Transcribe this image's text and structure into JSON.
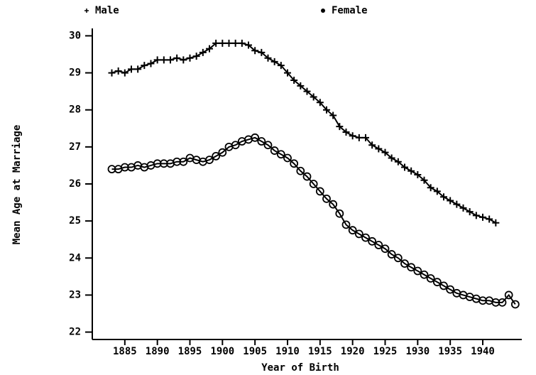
{
  "chart_data": {
    "type": "line",
    "x_label": "Year of Birth",
    "y_label": "Mean Age at Marriage",
    "x": [
      1883,
      1884,
      1885,
      1886,
      1887,
      1888,
      1889,
      1890,
      1891,
      1892,
      1893,
      1894,
      1895,
      1896,
      1897,
      1898,
      1899,
      1900,
      1901,
      1902,
      1903,
      1904,
      1905,
      1906,
      1907,
      1908,
      1909,
      1910,
      1911,
      1912,
      1913,
      1914,
      1915,
      1916,
      1917,
      1918,
      1919,
      1920,
      1921,
      1922,
      1923,
      1924,
      1925,
      1926,
      1927,
      1928,
      1929,
      1930,
      1931,
      1932,
      1933,
      1934,
      1935,
      1936,
      1937,
      1938,
      1939,
      1940,
      1941,
      1942,
      1943,
      1944,
      1945
    ],
    "series": [
      {
        "name": "Male",
        "color": "#000000",
        "marker": "plus",
        "values": [
          29.0,
          29.05,
          29.0,
          29.1,
          29.1,
          29.2,
          29.25,
          29.35,
          29.35,
          29.35,
          29.4,
          29.35,
          29.4,
          29.45,
          29.55,
          29.65,
          29.8,
          29.8,
          29.8,
          29.8,
          29.8,
          29.75,
          29.6,
          29.55,
          29.4,
          29.3,
          29.2,
          29.0,
          28.8,
          28.65,
          28.5,
          28.35,
          28.2,
          28.0,
          27.85,
          27.55,
          27.4,
          27.3,
          27.25,
          27.25,
          27.05,
          26.95,
          26.85,
          26.7,
          26.6,
          26.45,
          26.35,
          26.25,
          26.1,
          25.9,
          25.8,
          25.65,
          25.55,
          25.45,
          25.35,
          25.25,
          25.15,
          25.1,
          25.05,
          24.95,
          null,
          null,
          null
        ]
      },
      {
        "name": "Female",
        "color": "#000000",
        "marker": "circle",
        "values": [
          26.4,
          26.4,
          26.45,
          26.45,
          26.5,
          26.45,
          26.5,
          26.55,
          26.55,
          26.55,
          26.6,
          26.6,
          26.7,
          26.65,
          26.6,
          26.65,
          26.75,
          26.85,
          27.0,
          27.05,
          27.15,
          27.2,
          27.25,
          27.15,
          27.05,
          26.9,
          26.8,
          26.7,
          26.55,
          26.35,
          26.2,
          26.0,
          25.8,
          25.6,
          25.45,
          25.2,
          24.9,
          24.75,
          24.65,
          24.55,
          24.45,
          24.35,
          24.25,
          24.1,
          24.0,
          23.85,
          23.75,
          23.65,
          23.55,
          23.45,
          23.35,
          23.25,
          23.15,
          23.05,
          23.0,
          22.95,
          22.9,
          22.85,
          22.85,
          22.8,
          22.8,
          23.0,
          22.75
        ]
      }
    ],
    "xlim": [
      1880,
      1946
    ],
    "xticks": [
      1885,
      1890,
      1895,
      1900,
      1905,
      1910,
      1915,
      1920,
      1925,
      1930,
      1935,
      1940
    ],
    "ylim": [
      21.8,
      30.2
    ],
    "yticks": [
      22,
      23,
      24,
      25,
      26,
      27,
      28,
      29,
      30
    ],
    "legend": "top"
  }
}
